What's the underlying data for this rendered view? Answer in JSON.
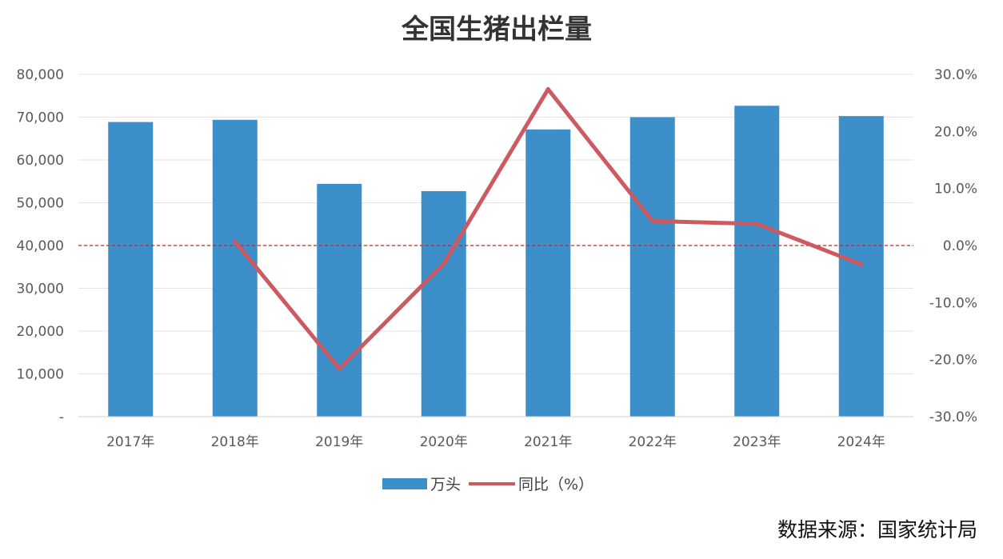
{
  "chart_data": {
    "type": "bar",
    "title": "全国生猪出栏量",
    "categories": [
      "2017年",
      "2018年",
      "2019年",
      "2020年",
      "2021年",
      "2022年",
      "2023年",
      "2024年"
    ],
    "series": [
      {
        "name": "万头",
        "type": "bar",
        "axis": "left",
        "color": "#3d8fc9",
        "values": [
          68861,
          69382,
          54419,
          52704,
          67128,
          69995,
          72662,
          70256
        ]
      },
      {
        "name": "同比（%）",
        "type": "line",
        "axis": "right",
        "color": "#cc5a60",
        "values": [
          null,
          0.7,
          -21.6,
          -3.2,
          27.4,
          4.3,
          3.8,
          -3.3
        ]
      }
    ],
    "left_axis": {
      "ylim": [
        0,
        80000
      ],
      "ticks": [
        0,
        10000,
        20000,
        30000,
        40000,
        50000,
        60000,
        70000,
        80000
      ],
      "tick_labels": [
        "-",
        "10,000",
        "20,000",
        "30,000",
        "40,000",
        "50,000",
        "60,000",
        "70,000",
        "80,000"
      ]
    },
    "right_axis": {
      "ylim": [
        -30,
        30
      ],
      "ticks": [
        -30,
        -20,
        -10,
        0,
        10,
        20,
        30
      ],
      "tick_labels": [
        "-30.0%",
        "-20.0%",
        "-10.0%",
        "0.0%",
        "10.0%",
        "20.0%",
        "30.0%"
      ]
    },
    "reference_line": {
      "axis": "right",
      "value": 0,
      "style": "dashed",
      "color": "#cc2222"
    },
    "grid": true,
    "legend": {
      "position": "bottom"
    }
  },
  "source": "数据来源：国家统计局"
}
